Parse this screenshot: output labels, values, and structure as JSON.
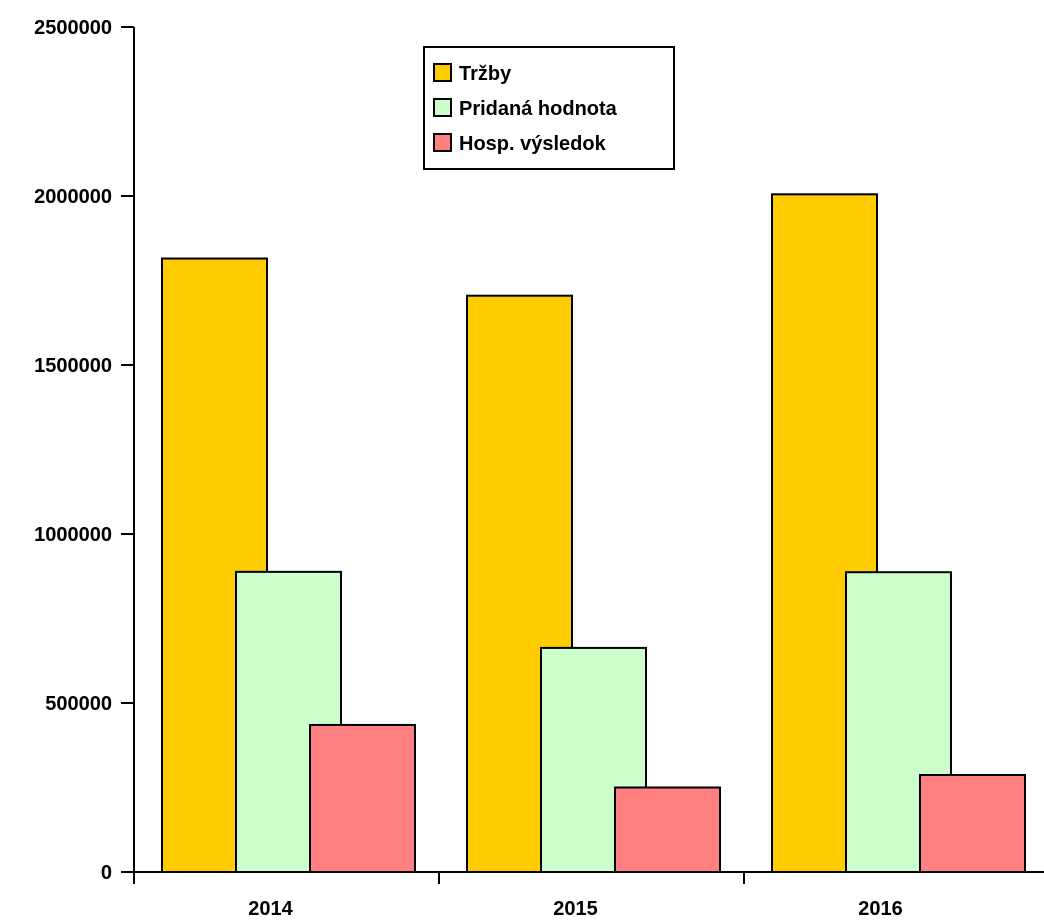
{
  "chart_data": {
    "type": "bar",
    "title": "",
    "xlabel": "",
    "ylabel": "",
    "categories": [
      "2014",
      "2015",
      "2016"
    ],
    "series": [
      {
        "name": "Tržby",
        "color": "#FFCC00",
        "values": [
          1815000,
          1705000,
          2005000
        ]
      },
      {
        "name": "Pridaná hodnota",
        "color": "#CCFFCC",
        "values": [
          888000,
          663000,
          887000
        ]
      },
      {
        "name": "Hosp. výsledok",
        "color": "#FF8080",
        "values": [
          435000,
          250000,
          287000
        ]
      }
    ],
    "ylim": [
      0,
      2500000
    ],
    "yticks": [
      "0",
      "500000",
      "1000000",
      "1500000",
      "2000000",
      "2500000"
    ],
    "grid": false,
    "legend_position": "top-center",
    "bar_style": "overlapping"
  }
}
